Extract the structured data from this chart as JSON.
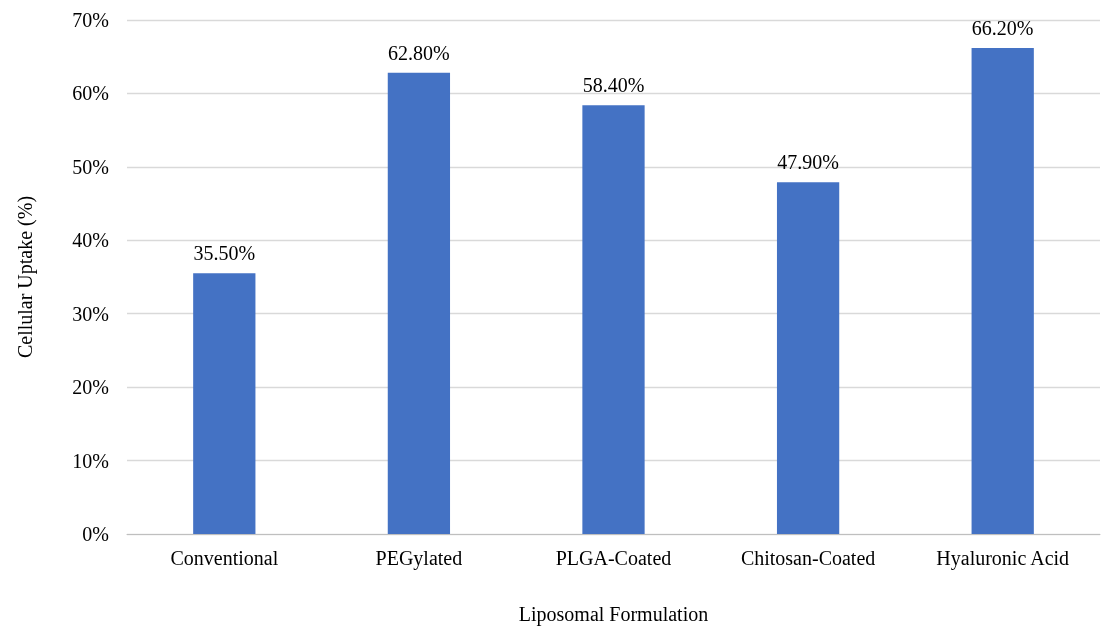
{
  "chart_data": {
    "type": "bar",
    "xlabel": "Liposomal Formulation",
    "ylabel": "Cellular Uptake (%)",
    "categories": [
      "Conventional",
      "PEGylated",
      "PLGA-Coated",
      "Chitosan-Coated",
      "Hyaluronic Acid"
    ],
    "values": [
      35.5,
      62.8,
      58.4,
      47.9,
      66.2
    ],
    "value_labels": [
      "35.50%",
      "62.80%",
      "58.40%",
      "47.90%",
      "66.20%"
    ],
    "color": "#4472c4",
    "ylim": [
      0,
      70
    ],
    "yticks": [
      {
        "value": 0,
        "label": "0%"
      },
      {
        "value": 10,
        "label": "10%"
      },
      {
        "value": 20,
        "label": "20%"
      },
      {
        "value": 30,
        "label": "30%"
      },
      {
        "value": 40,
        "label": "40%"
      },
      {
        "value": 50,
        "label": "50%"
      },
      {
        "value": 60,
        "label": "60%"
      },
      {
        "value": 70,
        "label": "70%"
      }
    ],
    "grid": "y"
  }
}
